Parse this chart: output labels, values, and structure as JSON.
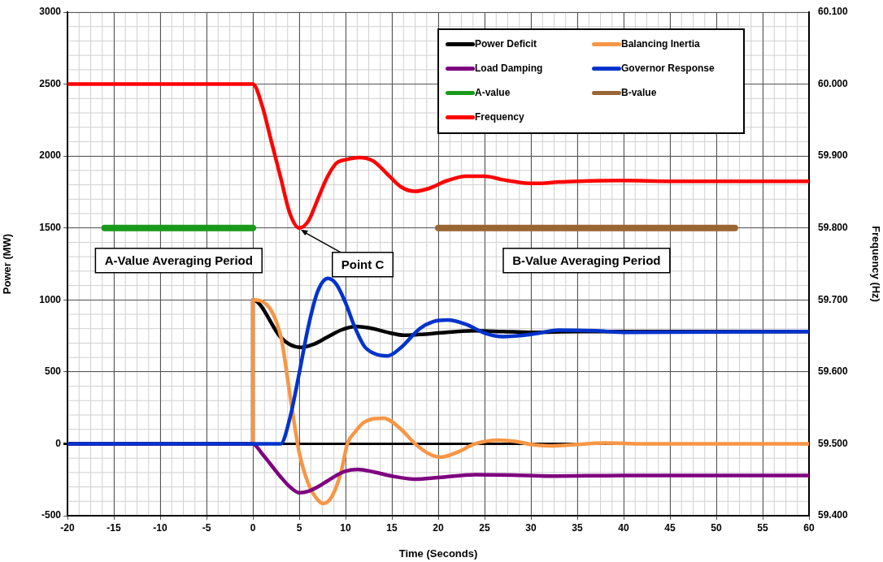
{
  "chart_data": {
    "type": "line",
    "xlabel": "Time (Seconds)",
    "ylabel": "Power (MW)",
    "y2label": "Frequency (Hz)",
    "xlim": [
      -20,
      60
    ],
    "xticks": [
      -20,
      -15,
      -10,
      -5,
      0,
      5,
      10,
      15,
      20,
      25,
      30,
      35,
      40,
      45,
      50,
      55,
      60
    ],
    "ylim": [
      -500,
      3000
    ],
    "yticks": [
      -500,
      0,
      500,
      1000,
      1500,
      2000,
      2500,
      3000
    ],
    "y2lim": [
      59.4,
      60.1
    ],
    "y2ticks": [
      {
        "value": 59.4,
        "label": "59.400"
      },
      {
        "value": 59.5,
        "label": "59.500"
      },
      {
        "value": 59.6,
        "label": "59.600"
      },
      {
        "value": 59.7,
        "label": "59.700"
      },
      {
        "value": 59.8,
        "label": "59.800"
      },
      {
        "value": 59.9,
        "label": "59.900"
      },
      {
        "value": 60.0,
        "label": "60.000"
      },
      {
        "value": 60.1,
        "label": "60.100"
      }
    ],
    "grid": true,
    "legend": "top right",
    "marker": "none",
    "line_style": "solid",
    "series": [
      {
        "name": "Power Deficit",
        "color": "#000000",
        "x": [
          -20,
          0,
          0,
          3,
          4,
          5.2,
          6.5,
          8,
          9.5,
          11.1,
          13,
          14.5,
          16.3,
          18,
          20,
          22,
          24,
          27,
          30,
          35,
          40,
          60
        ],
        "values": [
          0,
          0,
          1000,
          740,
          690,
          670,
          690,
          740,
          790,
          815,
          800,
          775,
          755,
          760,
          770,
          780,
          785,
          780,
          775,
          780,
          780,
          780
        ]
      },
      {
        "name": "Balancing Inertia",
        "color": "#f79646",
        "x": [
          -20,
          0,
          0,
          3,
          4,
          5,
          6,
          7,
          7.6,
          8.5,
          9.5,
          10.2,
          11,
          12,
          14.1,
          16,
          17.5,
          19,
          20.3,
          22,
          24,
          26.5,
          28.5,
          30,
          32,
          35,
          38,
          42,
          60
        ],
        "values": [
          0,
          0,
          1000,
          750,
          340,
          -60,
          -280,
          -390,
          -415,
          -370,
          -200,
          0,
          80,
          150,
          178,
          100,
          0,
          -70,
          -93,
          -60,
          0,
          25,
          15,
          -5,
          -15,
          -5,
          5,
          0,
          0
        ]
      },
      {
        "name": "Load Damping",
        "color": "#7f007f",
        "x": [
          -20,
          0,
          1,
          2,
          3,
          4,
          5,
          6,
          7,
          8,
          9,
          10,
          11.3,
          13,
          15,
          17.5,
          20,
          24,
          28,
          32,
          40,
          60
        ],
        "values": [
          0,
          0,
          -70,
          -150,
          -230,
          -300,
          -340,
          -330,
          -300,
          -260,
          -220,
          -190,
          -178,
          -195,
          -225,
          -246,
          -235,
          -215,
          -218,
          -225,
          -220,
          -220
        ]
      },
      {
        "name": "Governor Response",
        "color": "#0033cc",
        "x": [
          -20,
          3,
          4,
          5,
          6,
          7,
          8.1,
          9,
          10,
          11,
          12,
          13,
          14.5,
          16,
          18,
          19.5,
          21,
          23,
          25,
          27,
          30,
          33,
          37,
          40,
          60
        ],
        "values": [
          0,
          0,
          180,
          490,
          820,
          1060,
          1150,
          1110,
          980,
          810,
          680,
          630,
          610,
          670,
          800,
          850,
          860,
          830,
          770,
          745,
          760,
          790,
          785,
          775,
          780
        ]
      },
      {
        "name": "A-value",
        "color": "#1a9a1a",
        "x": [
          -16,
          0
        ],
        "values": [
          1500,
          1500
        ]
      },
      {
        "name": "B-value",
        "color": "#996633",
        "x": [
          20,
          52
        ],
        "values": [
          1500,
          1500
        ]
      },
      {
        "name": "Frequency",
        "color": "#ff0000",
        "axis": "y2",
        "x": [
          -20,
          0,
          1,
          2,
          3,
          4,
          5,
          6,
          7,
          8,
          9,
          10,
          11.5,
          13,
          14.5,
          16,
          17.5,
          19,
          21,
          23,
          25,
          27,
          29,
          31,
          33,
          35,
          40,
          45,
          50,
          55,
          60
        ],
        "values": [
          60.0,
          60.0,
          59.97,
          59.92,
          59.87,
          59.82,
          59.8,
          59.81,
          59.84,
          59.87,
          59.89,
          59.895,
          59.898,
          59.893,
          59.875,
          59.857,
          59.851,
          59.855,
          59.866,
          59.872,
          59.872,
          59.867,
          59.863,
          59.862,
          59.864,
          59.865,
          59.866,
          59.865,
          59.865,
          59.865,
          59.865
        ]
      }
    ],
    "annotations": [
      {
        "text": "A-Value Averaging Period",
        "x": -8,
        "y": 1500
      },
      {
        "text": "Point C",
        "x": 5,
        "y": 1500
      },
      {
        "text": "B-Value Averaging Period",
        "x": 36,
        "y": 1500
      }
    ]
  }
}
